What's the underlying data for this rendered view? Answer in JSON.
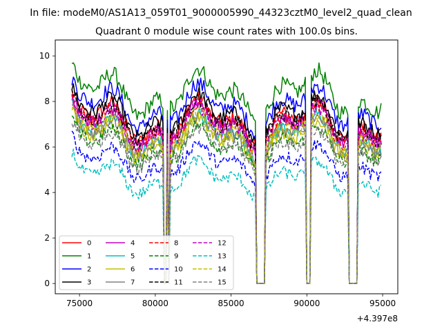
{
  "suptitle": "In file: modeM0/AS1A13_059T01_9000005990_44323cztM0_level2_quad_clean",
  "chart_data": {
    "type": "line",
    "title": "Quadrant 0 module wise count rates with 100.0s bins.",
    "xlabel": "",
    "ylabel": "",
    "x_offset_label": "+4.397e8",
    "x_range": [
      74500,
      94900
    ],
    "xlim": [
      73400,
      96000
    ],
    "ylim": [
      -0.45,
      10.7
    ],
    "xticks": [
      75000,
      80000,
      85000,
      90000,
      95000
    ],
    "xtick_labels": [
      "75000",
      "80000",
      "85000",
      "90000",
      "95000"
    ],
    "yticks": [
      0,
      2,
      4,
      6,
      8,
      10
    ],
    "ytick_labels": [
      "0",
      "2",
      "4",
      "6",
      "8",
      "10"
    ],
    "grid": false,
    "legend_position": "lower-left",
    "gaps": [
      [
        80580,
        80720
      ],
      [
        80860,
        80960
      ],
      [
        86660,
        87260
      ],
      [
        89960,
        90220
      ],
      [
        92730,
        93350
      ]
    ],
    "series": [
      {
        "name": "0",
        "color": "#ff0000",
        "dash": "solid",
        "level": 7.1
      },
      {
        "name": "1",
        "color": "#008000",
        "dash": "solid",
        "level": 8.3
      },
      {
        "name": "2",
        "color": "#0000ff",
        "dash": "solid",
        "level": 7.7
      },
      {
        "name": "3",
        "color": "#000000",
        "dash": "solid",
        "level": 7.3
      },
      {
        "name": "4",
        "color": "#bf00bf",
        "dash": "solid",
        "level": 6.9
      },
      {
        "name": "5",
        "color": "#00bfbf",
        "dash": "solid",
        "level": 6.5
      },
      {
        "name": "6",
        "color": "#bfbf00",
        "dash": "solid",
        "level": 6.3
      },
      {
        "name": "7",
        "color": "#808080",
        "dash": "solid",
        "level": 6.4
      },
      {
        "name": "8",
        "color": "#ff0000",
        "dash": "dashed",
        "level": 6.9
      },
      {
        "name": "9",
        "color": "#008000",
        "dash": "dashed",
        "level": 6.0
      },
      {
        "name": "10",
        "color": "#0000ff",
        "dash": "dashed",
        "level": 5.3
      },
      {
        "name": "11",
        "color": "#000000",
        "dash": "dashed",
        "level": 7.0
      },
      {
        "name": "12",
        "color": "#bf00bf",
        "dash": "dashed",
        "level": 6.8
      },
      {
        "name": "13",
        "color": "#00bfbf",
        "dash": "dashed",
        "level": 4.6
      },
      {
        "name": "14",
        "color": "#bfbf00",
        "dash": "dashed",
        "level": 6.5
      },
      {
        "name": "15",
        "color": "#808080",
        "dash": "dashed",
        "level": 5.9
      }
    ]
  }
}
